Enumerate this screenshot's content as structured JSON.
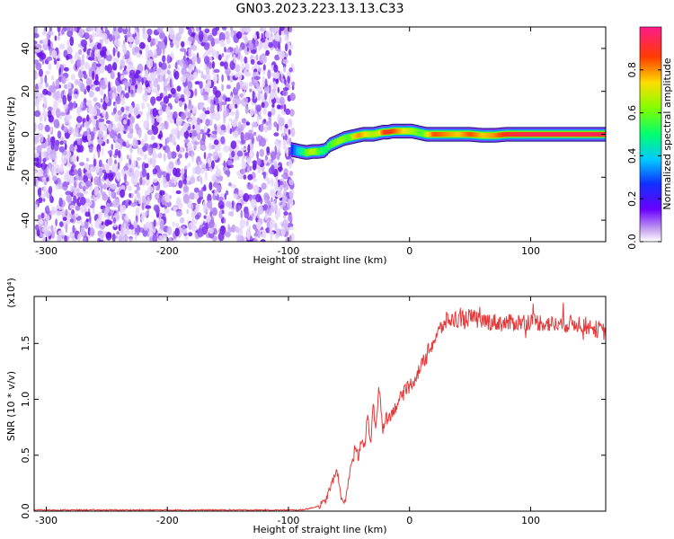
{
  "title": "GN03.2023.223.13.13.C33",
  "chart_data": [
    {
      "type": "heatmap",
      "name": "spectrogram",
      "xlabel": "Height of straight line (km)",
      "ylabel": "Frequency (Hz)",
      "xlim": [
        -310,
        162
      ],
      "ylim": [
        -50,
        50
      ],
      "xticks": [
        -300,
        -200,
        -100,
        0,
        100
      ],
      "xtick_labels": [
        "-300",
        "-200",
        "-100",
        "0",
        "100"
      ],
      "yticks": [
        -40,
        -20,
        0,
        20,
        40
      ],
      "ytick_labels": [
        "-40",
        "-20",
        "0",
        "20",
        "40"
      ],
      "noise_region_x": [
        -310,
        -96
      ],
      "ridge": {
        "x": [
          -98,
          -90,
          -85,
          -80,
          -75,
          -70,
          -66,
          -62,
          -58,
          -54,
          -50,
          -46,
          -42,
          -38,
          -34,
          -30,
          -26,
          -22,
          -18,
          -14,
          -10,
          -6,
          -2,
          2,
          6,
          10,
          14,
          20,
          30,
          40,
          50,
          60,
          70,
          80,
          100,
          120,
          140,
          162
        ],
        "freq": [
          -7,
          -8,
          -8.5,
          -8,
          -8,
          -7.5,
          -5,
          -4,
          -3,
          -2,
          -1.5,
          -1,
          -0.5,
          0,
          0,
          0,
          0.5,
          1,
          1,
          1.5,
          1.5,
          1.5,
          1.5,
          1.5,
          1,
          0.5,
          0,
          0,
          0,
          0,
          0,
          -0.5,
          -0.5,
          0,
          0,
          0,
          0,
          0
        ],
        "amplitude": [
          0.25,
          0.45,
          0.6,
          0.7,
          0.55,
          0.5,
          0.55,
          0.6,
          0.65,
          0.6,
          0.55,
          0.75,
          0.8,
          0.75,
          0.7,
          0.65,
          0.7,
          0.85,
          0.9,
          0.85,
          0.8,
          0.75,
          0.7,
          0.65,
          0.6,
          0.55,
          0.7,
          0.85,
          0.8,
          0.75,
          0.85,
          0.75,
          0.8,
          0.9,
          0.95,
          0.95,
          0.95,
          0.95
        ]
      },
      "colorbar": {
        "label": "Normalized spectral amplitude",
        "range": [
          0,
          1
        ],
        "ticks": [
          0.0,
          0.2,
          0.4,
          0.6,
          0.8
        ],
        "tick_labels": [
          "0.0",
          "0.2",
          "0.4",
          "0.6",
          "0.8"
        ]
      }
    },
    {
      "type": "line",
      "name": "snr",
      "xlabel": "Height of straight line (km)",
      "ylabel": "SNR (10 * v/v)",
      "scale_label": "(x10⁴)",
      "xlim": [
        -310,
        162
      ],
      "ylim": [
        0,
        1.92
      ],
      "xticks": [
        -300,
        -200,
        -100,
        0,
        100
      ],
      "xtick_labels": [
        "-300",
        "-200",
        "-100",
        "0",
        "100"
      ],
      "yticks": [
        0,
        0.5,
        1.0,
        1.5
      ],
      "ytick_labels": [
        "0.0",
        "0.5",
        "1.0",
        "1.5"
      ],
      "color": "#e8393a",
      "x": [
        -310,
        -200,
        -120,
        -90,
        -80,
        -75,
        -70,
        -65,
        -60,
        -57,
        -54,
        -52,
        -50,
        -47,
        -44,
        -42,
        -40,
        -37,
        -35,
        -32,
        -30,
        -28,
        -25,
        -22,
        -20,
        -18,
        -15,
        -12,
        -10,
        -5,
        0,
        5,
        10,
        15,
        20,
        25,
        30,
        40,
        50,
        60,
        80,
        100,
        120,
        140,
        162
      ],
      "y": [
        0.01,
        0.01,
        0.01,
        0.01,
        0.03,
        0.05,
        0.08,
        0.22,
        0.38,
        0.15,
        0.05,
        0.15,
        0.32,
        0.43,
        0.55,
        0.48,
        0.62,
        0.58,
        0.85,
        0.62,
        1.0,
        0.7,
        1.12,
        0.72,
        0.85,
        0.82,
        0.88,
        0.92,
        0.97,
        1.05,
        1.12,
        1.2,
        1.3,
        1.42,
        1.52,
        1.62,
        1.7,
        1.72,
        1.73,
        1.7,
        1.68,
        1.7,
        1.67,
        1.68,
        1.6
      ],
      "noise_amplitude": 0.05
    }
  ]
}
